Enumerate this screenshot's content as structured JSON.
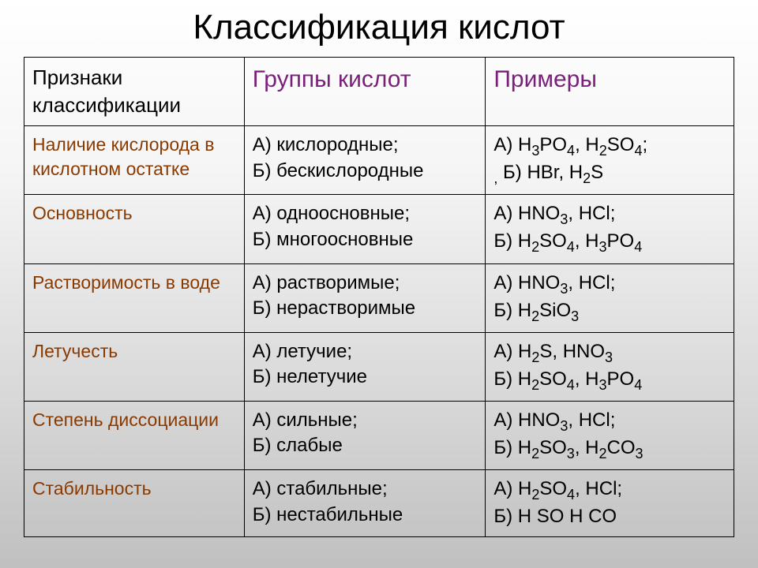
{
  "title": "Классификация кислот",
  "headers": {
    "c1": "Признаки классификации",
    "c2": "Группы кислот",
    "c3": "Примеры"
  },
  "rows": [
    {
      "feature": "  Наличие кислорода в кислотном остатке",
      "groups": [
        "А) кислородные;",
        "Б) бескислородные"
      ],
      "examples": [
        "А) H₃PO₄, H₂SO₄;",
        " Б) HBr, H₂S",
        "prefix_comma"
      ]
    },
    {
      "feature": "Основность",
      "groups": [
        "А) одноосновные;",
        "Б) многоосновные"
      ],
      "examples": [
        "А) HNO₃, HCl;",
        "Б) H₂SO₄, H₃PO₄"
      ]
    },
    {
      "feature": "Растворимость в воде",
      "groups": [
        "А) растворимые;",
        "Б) нерастворимые"
      ],
      "examples": [
        "А) HNO₃, HCl;",
        "Б) H₂SiO₃"
      ]
    },
    {
      "feature": "Летучесть",
      "groups": [
        "А) летучие;",
        "Б) нелетучие"
      ],
      "examples": [
        "А) H₂S, HNO₃",
        "Б) H₂SO₄, H₃PO₄"
      ]
    },
    {
      "feature": "Степень диссоциации",
      "groups": [
        "А) сильные;",
        "Б) слабые"
      ],
      "examples": [
        "А) HNO₃, HCl;",
        "Б) H₂SO₃, H₂CO₃"
      ]
    },
    {
      "feature": "Стабильность",
      "groups": [
        "А) стабильные;",
        "Б) нестабильные"
      ],
      "examples": [
        "А) H₂SO₄, HCl;",
        "Б) H SO  H CO"
      ]
    }
  ]
}
